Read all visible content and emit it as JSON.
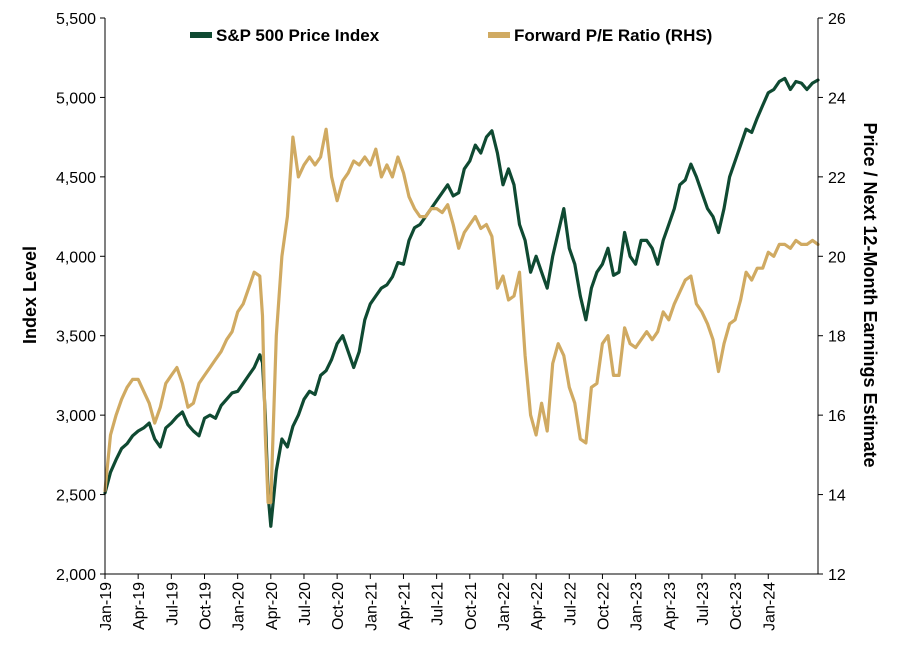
{
  "chart_data": {
    "type": "line",
    "title": "",
    "xlabel": "",
    "ylabel": "Index Level",
    "y2label": "Price / Next 12-Month Earnings Estimate",
    "ylim": [
      2000,
      5500
    ],
    "y2lim": [
      12,
      26
    ],
    "yticks": [
      "2,000",
      "2,500",
      "3,000",
      "3,500",
      "4,000",
      "4,500",
      "5,000",
      "5,500"
    ],
    "y2ticks": [
      "12",
      "14",
      "16",
      "18",
      "20",
      "22",
      "24",
      "26"
    ],
    "xticks": [
      "Jan-19",
      "Apr-19",
      "Jul-19",
      "Oct-19",
      "Jan-20",
      "Apr-20",
      "Jul-20",
      "Oct-20",
      "Jan-21",
      "Apr-21",
      "Jul-21",
      "Oct-21",
      "Jan-22",
      "Apr-22",
      "Jul-22",
      "Oct-22",
      "Jan-23",
      "Apr-23",
      "Jul-23",
      "Oct-23",
      "Jan-24"
    ],
    "grid": false,
    "legend_position": "top",
    "series": [
      {
        "name": "S&P 500 Price Index",
        "axis": "left",
        "color": "#0f4a32",
        "x": [
          0,
          0.5,
          1,
          1.5,
          2,
          2.5,
          3,
          3.5,
          4,
          4.5,
          5,
          5.5,
          6,
          6.5,
          7,
          7.5,
          8,
          8.5,
          9,
          9.5,
          10,
          10.5,
          11,
          11.5,
          12,
          12.5,
          13,
          13.5,
          14,
          14.25,
          14.5,
          14.75,
          15,
          15.5,
          16,
          16.5,
          17,
          17.5,
          18,
          18.5,
          19,
          19.5,
          20,
          20.5,
          21,
          21.5,
          22,
          22.5,
          23,
          23.5,
          24,
          24.5,
          25,
          25.5,
          26,
          26.5,
          27,
          27.5,
          28,
          28.5,
          29,
          29.5,
          30,
          30.5,
          31,
          31.5,
          32,
          32.5,
          33,
          33.5,
          34,
          34.5,
          35,
          35.5,
          36,
          36.5,
          37,
          37.5,
          38,
          38.5,
          39,
          39.5,
          40,
          40.5,
          41,
          41.5,
          42,
          42.5,
          43,
          43.5,
          44,
          44.5,
          45,
          45.5,
          46,
          46.5,
          47,
          47.5,
          48,
          48.5,
          49,
          49.5,
          50,
          50.5,
          51,
          51.5,
          52,
          52.5,
          53,
          53.5,
          54,
          54.5,
          55,
          55.5,
          56,
          56.5,
          57,
          57.5,
          58,
          58.5,
          59,
          59.5,
          60,
          60.5,
          61,
          61.5,
          62,
          62.5,
          63,
          63.5,
          64,
          64.5
        ],
        "values": [
          2510,
          2640,
          2720,
          2790,
          2820,
          2870,
          2900,
          2920,
          2950,
          2850,
          2800,
          2920,
          2950,
          2990,
          3020,
          2940,
          2900,
          2870,
          2980,
          3000,
          2980,
          3060,
          3100,
          3140,
          3150,
          3200,
          3250,
          3300,
          3380,
          3330,
          3000,
          2500,
          2300,
          2650,
          2850,
          2800,
          2930,
          3000,
          3100,
          3150,
          3130,
          3250,
          3280,
          3350,
          3450,
          3500,
          3400,
          3300,
          3400,
          3600,
          3700,
          3750,
          3800,
          3820,
          3870,
          3960,
          3950,
          4100,
          4180,
          4200,
          4250,
          4300,
          4350,
          4400,
          4450,
          4380,
          4400,
          4550,
          4600,
          4700,
          4650,
          4750,
          4790,
          4650,
          4450,
          4550,
          4450,
          4200,
          4100,
          3900,
          4000,
          3900,
          3800,
          4000,
          4150,
          4300,
          4050,
          3950,
          3750,
          3600,
          3800,
          3900,
          3950,
          4050,
          3880,
          3900,
          4150,
          4000,
          3950,
          4100,
          4100,
          4050,
          3950,
          4100,
          4200,
          4300,
          4450,
          4480,
          4580,
          4500,
          4400,
          4300,
          4250,
          4150,
          4300,
          4500,
          4600,
          4700,
          4800,
          4780,
          4870,
          4950,
          5030,
          5050,
          5100,
          5120,
          5050,
          5100,
          5090,
          5050,
          5090,
          5110
        ]
      },
      {
        "name": "Forward P/E Ratio (RHS)",
        "axis": "right",
        "color": "#d0aa62",
        "x": [
          0,
          0.5,
          1,
          1.5,
          2,
          2.5,
          3,
          3.5,
          4,
          4.5,
          5,
          5.5,
          6,
          6.5,
          7,
          7.5,
          8,
          8.5,
          9,
          9.5,
          10,
          10.5,
          11,
          11.5,
          12,
          12.5,
          13,
          13.5,
          14,
          14.25,
          14.5,
          14.75,
          15,
          15.5,
          16,
          16.5,
          17,
          17.5,
          18,
          18.5,
          19,
          19.5,
          20,
          20.5,
          21,
          21.5,
          22,
          22.5,
          23,
          23.5,
          24,
          24.5,
          25,
          25.5,
          26,
          26.5,
          27,
          27.5,
          28,
          28.5,
          29,
          29.5,
          30,
          30.5,
          31,
          31.5,
          32,
          32.5,
          33,
          33.5,
          34,
          34.5,
          35,
          35.5,
          36,
          36.5,
          37,
          37.5,
          38,
          38.5,
          39,
          39.5,
          40,
          40.5,
          41,
          41.5,
          42,
          42.5,
          43,
          43.5,
          44,
          44.5,
          45,
          45.5,
          46,
          46.5,
          47,
          47.5,
          48,
          48.5,
          49,
          49.5,
          50,
          50.5,
          51,
          51.5,
          52,
          52.5,
          53,
          53.5,
          54,
          54.5,
          55,
          55.5,
          56,
          56.5,
          57,
          57.5,
          58,
          58.5,
          59,
          59.5,
          60,
          60.5,
          61,
          61.5,
          62,
          62.5,
          63,
          63.5,
          64,
          64.5
        ],
        "values": [
          14.1,
          15.5,
          16.0,
          16.4,
          16.7,
          16.9,
          16.9,
          16.6,
          16.3,
          15.8,
          16.2,
          16.8,
          17.0,
          17.2,
          16.8,
          16.2,
          16.3,
          16.8,
          17.0,
          17.2,
          17.4,
          17.6,
          17.9,
          18.1,
          18.6,
          18.8,
          19.2,
          19.6,
          19.5,
          18.5,
          15.5,
          13.8,
          13.8,
          18.0,
          20.0,
          21.0,
          23.0,
          22.0,
          22.3,
          22.5,
          22.3,
          22.5,
          23.2,
          22.0,
          21.4,
          21.9,
          22.1,
          22.4,
          22.3,
          22.5,
          22.3,
          22.7,
          22.0,
          22.3,
          22.0,
          22.5,
          22.1,
          21.5,
          21.2,
          21.0,
          21.0,
          21.2,
          21.2,
          21.1,
          21.3,
          20.8,
          20.2,
          20.6,
          20.8,
          21.0,
          20.7,
          20.8,
          20.5,
          19.2,
          19.5,
          18.9,
          19.0,
          19.6,
          17.5,
          16.0,
          15.5,
          16.3,
          15.6,
          17.3,
          17.8,
          17.5,
          16.7,
          16.3,
          15.4,
          15.3,
          16.7,
          16.8,
          17.8,
          18.0,
          17.0,
          17.0,
          18.2,
          17.8,
          17.7,
          17.9,
          18.1,
          17.9,
          18.1,
          18.6,
          18.4,
          18.8,
          19.1,
          19.4,
          19.5,
          18.8,
          18.6,
          18.3,
          17.9,
          17.1,
          17.8,
          18.3,
          18.4,
          18.9,
          19.6,
          19.4,
          19.7,
          19.7,
          20.1,
          20.0,
          20.3,
          20.3,
          20.2,
          20.4,
          20.3,
          20.3,
          20.4,
          20.3
        ]
      }
    ]
  }
}
